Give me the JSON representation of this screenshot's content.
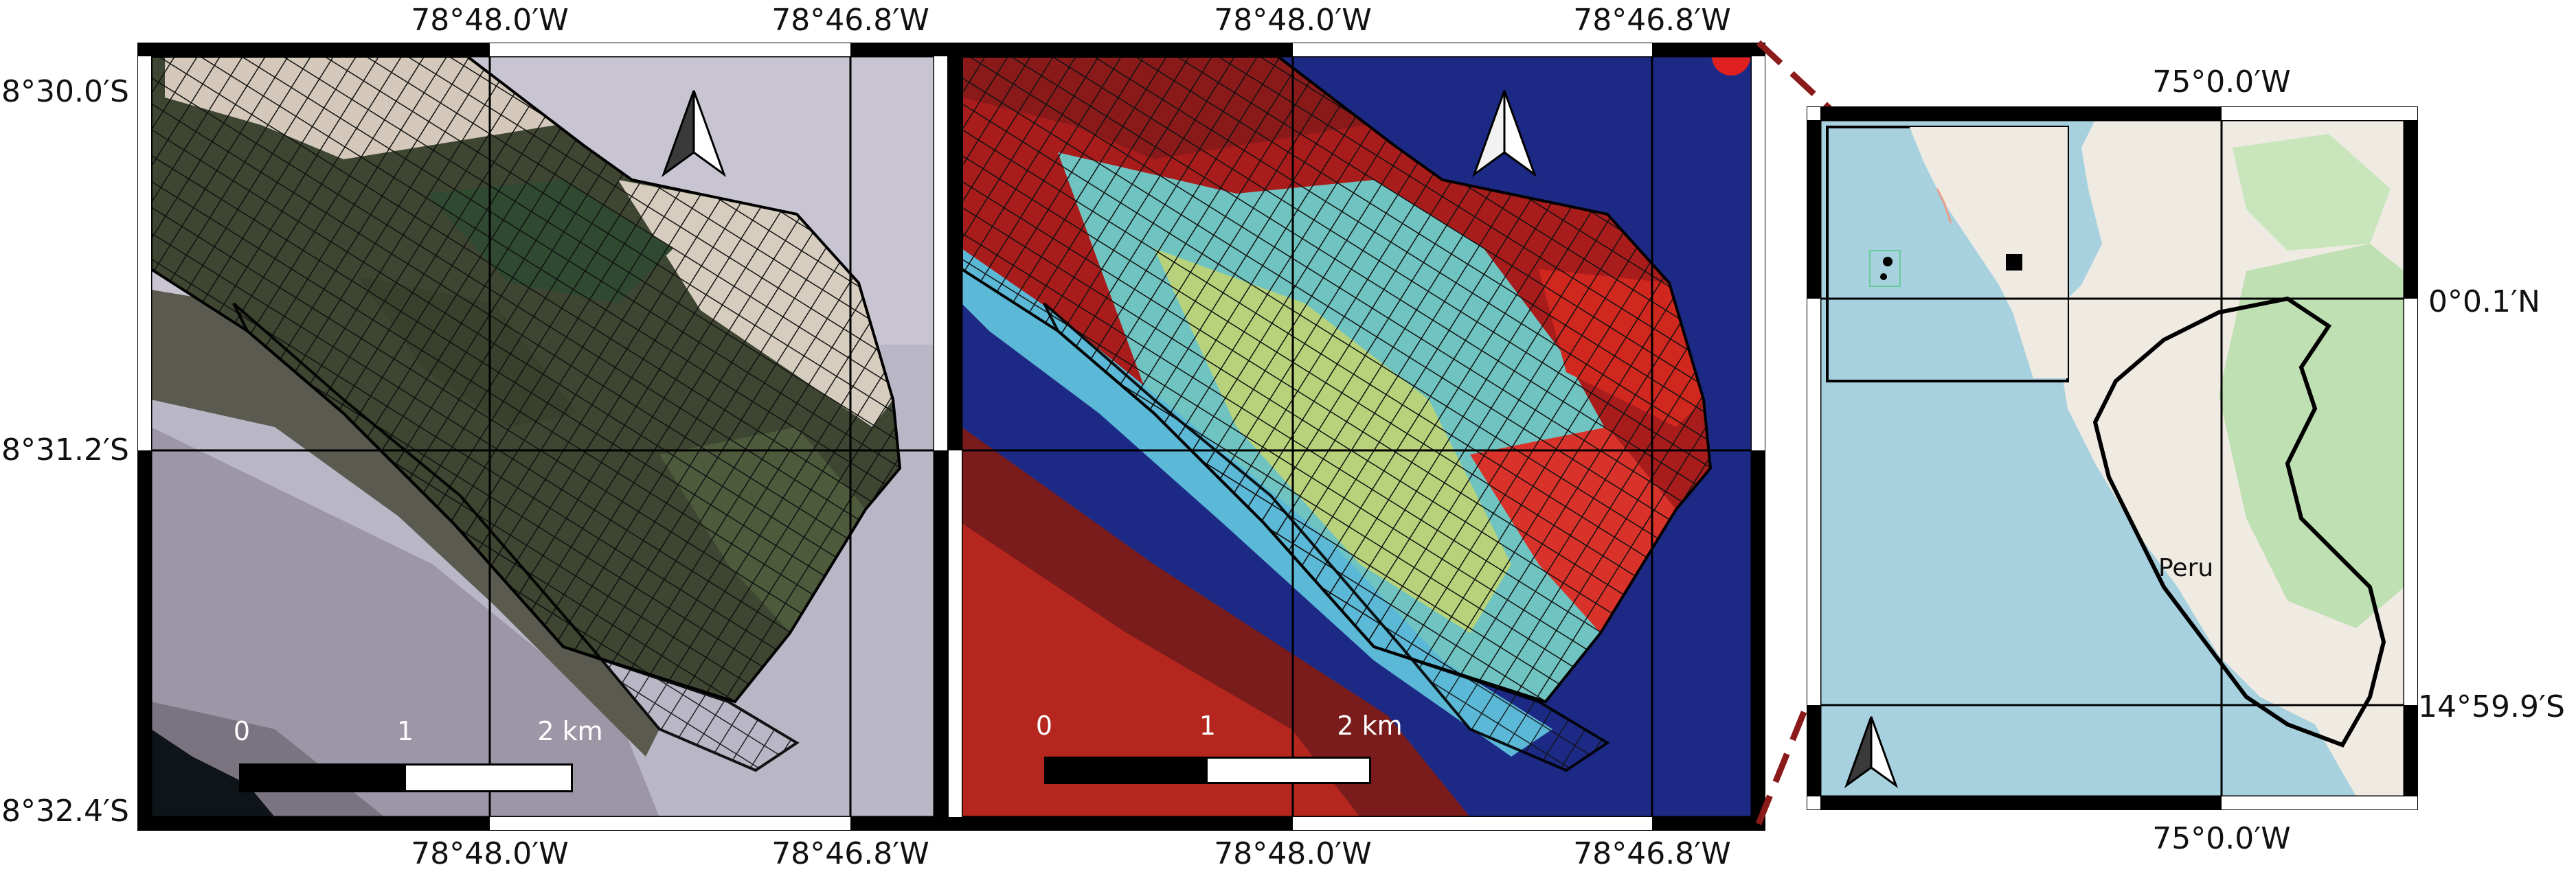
{
  "panel_left": {
    "top_ticks": [
      "78°48.0′W",
      "78°46.8′W"
    ],
    "bottom_ticks": [
      "78°48.0′W",
      "78°46.8′W"
    ],
    "left_ticks": [
      "8°30.0′S",
      "8°31.2′S",
      "8°32.4′S"
    ],
    "scale": {
      "labels": [
        "0",
        "1",
        "2 km"
      ]
    },
    "north_arrow": "north-arrow-icon"
  },
  "panel_middle": {
    "top_ticks": [
      "78°48.0′W",
      "78°46.8′W"
    ],
    "bottom_ticks": [
      "78°48.0′W",
      "78°46.8′W"
    ],
    "scale": {
      "labels": [
        "0",
        "1",
        "2 km"
      ]
    },
    "north_arrow": "north-arrow-icon"
  },
  "panel_right": {
    "top_ticks": [
      "75°0.0′W"
    ],
    "bottom_ticks": [
      "75°0.0′W"
    ],
    "right_ticks": [
      "0°0.1′N",
      "14°59.9′S"
    ],
    "country_label": "Peru",
    "north_arrow": "north-arrow-icon"
  },
  "colors": {
    "ocean": "#a8d1df",
    "land": "#efebe2",
    "forest": "#b9dcae",
    "border": "#000000",
    "connector": "#8b1a1a",
    "rgb_desert": "#bdbac9",
    "rgb_crop_dark": "#3d4630",
    "rgb_field_tan": "#d8cfc2",
    "falsecolor_red": "#d21818",
    "falsecolor_blue": "#1a2a8a",
    "falsecolor_cyan": "#7fd3c8"
  }
}
